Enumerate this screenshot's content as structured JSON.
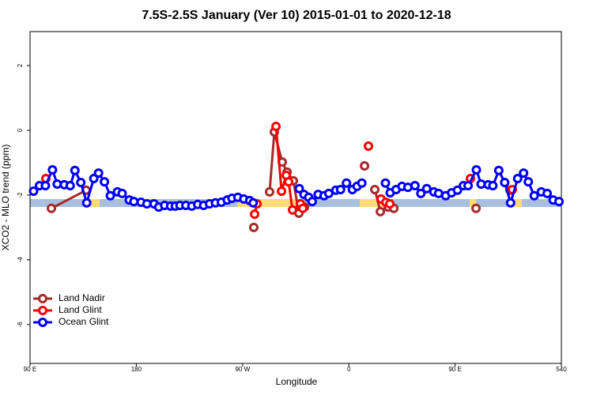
{
  "chart_data": {
    "type": "line",
    "title": "7.5S-2.5S January (Ver 10)   2015-01-01 to 2020-12-18",
    "x_label": "Longitude",
    "y_label": "XCO2 - MLO trend (ppm)",
    "xlim": [
      90,
      540
    ],
    "ylim": [
      -7.2,
      3.05
    ],
    "xticks": [
      {
        "value": 90,
        "label": "90 E"
      },
      180,
      {
        "value": 270,
        "label": "90 W"
      },
      {
        "value": 360,
        "label": "0"
      },
      {
        "value": 450,
        "label": "90 E"
      },
      540
    ],
    "yticks": [
      -6,
      -4,
      -2,
      0,
      2
    ],
    "legend": "lower left",
    "series": [
      {
        "name": "Land Nadir",
        "color": "#a52a2a",
        "x": [
          108.1,
          137.5,
          null,
          279.5,
          null,
          292.9,
          296.9,
          303.6,
          307.7,
          313.0,
          317.7,
          322.4,
          null,
          373.3,
          null,
          382.0,
          386.7,
          393.4,
          398.1,
          null,
          467.7,
          null,
          496.5
        ],
        "values": [
          -2.41,
          -1.85,
          null,
          -3.0,
          null,
          -1.9,
          -0.05,
          -0.98,
          -1.29,
          -1.56,
          -2.56,
          -2.37,
          null,
          -1.1,
          null,
          -1.83,
          -2.51,
          -2.37,
          -2.41,
          null,
          -2.41,
          null,
          -1.85
        ]
      },
      {
        "name": "Land Glint",
        "color": "#ff0000",
        "x": [
          103.4,
          null,
          280.2,
          282.2,
          null,
          298.3,
          303.0,
          307.0,
          309.0,
          312.3,
          319.0,
          321.0,
          null,
          376.6,
          null,
          387.3,
          391.4,
          394.7,
          null,
          463.0,
          null,
          498.5
        ],
        "values": [
          -1.49,
          null,
          -2.59,
          -2.27,
          null,
          0.12,
          -1.88,
          -1.39,
          -1.59,
          -2.46,
          -2.27,
          -2.41,
          null,
          -0.49,
          null,
          -2.12,
          -2.22,
          -2.27,
          null,
          -1.49,
          null,
          -1.83
        ]
      },
      {
        "name": "Ocean Glint",
        "color": "#0000ff",
        "x": [
          93,
          98,
          103,
          109,
          113,
          119,
          124,
          128,
          133,
          138,
          144,
          148,
          153,
          158,
          164,
          168,
          174,
          178,
          184,
          189,
          195,
          199,
          204,
          209,
          213,
          217,
          222,
          227,
          232,
          237,
          242,
          247,
          252,
          257,
          261,
          266,
          271,
          276,
          279,
          null,
          318,
          322,
          326,
          329,
          334,
          339,
          343,
          349,
          353,
          358,
          363,
          367,
          371,
          null,
          391,
          395,
          400,
          405,
          410,
          416,
          421,
          426,
          432,
          436,
          442,
          447,
          452,
          457,
          461,
          468,
          472,
          478,
          482,
          487,
          492,
          497,
          503,
          508,
          512,
          517,
          523,
          528,
          533,
          538
        ],
        "values": [
          -1.88,
          -1.71,
          -1.71,
          -1.22,
          -1.66,
          -1.68,
          -1.71,
          -1.24,
          -1.61,
          -2.24,
          -1.49,
          -1.32,
          -1.59,
          -2.02,
          -1.9,
          -1.95,
          -2.15,
          -2.2,
          -2.22,
          -2.27,
          -2.27,
          -2.37,
          -2.32,
          -2.34,
          -2.34,
          -2.32,
          -2.32,
          -2.34,
          -2.29,
          -2.32,
          -2.27,
          -2.24,
          -2.22,
          -2.15,
          -2.1,
          -2.07,
          -2.12,
          -2.17,
          -2.24,
          null,
          -1.8,
          -1.98,
          -2.07,
          -2.2,
          -1.98,
          -2.02,
          -1.95,
          -1.85,
          -1.83,
          -1.63,
          -1.83,
          -1.73,
          -1.63,
          null,
          -1.63,
          -1.93,
          -1.83,
          -1.73,
          -1.76,
          -1.71,
          -1.95,
          -1.8,
          -1.9,
          -1.95,
          -2.02,
          -1.93,
          -1.85,
          -1.71,
          -1.71,
          -1.22,
          -1.66,
          -1.68,
          -1.71,
          -1.24,
          -1.61,
          -2.24,
          -1.49,
          -1.32,
          -1.59,
          -2.02,
          -1.9,
          -1.95,
          -2.15,
          -2.2
        ]
      }
    ]
  }
}
